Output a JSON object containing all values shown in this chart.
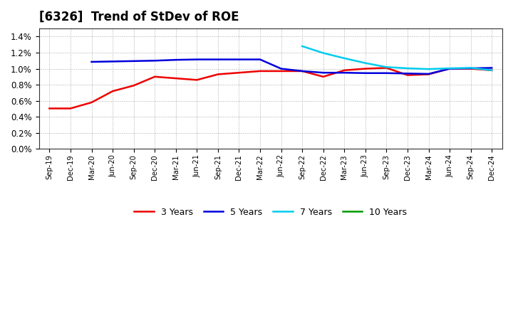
{
  "title": "[6326]  Trend of StDev of ROE",
  "background_color": "#ffffff",
  "plot_bg_color": "#ffffff",
  "grid_color": "#aaaaaa",
  "ylim": [
    0.0,
    0.015
  ],
  "yticks": [
    0.0,
    0.002,
    0.004,
    0.006,
    0.008,
    0.01,
    0.012,
    0.014
  ],
  "x_labels": [
    "Sep-19",
    "Dec-19",
    "Mar-20",
    "Jun-20",
    "Sep-20",
    "Dec-20",
    "Mar-21",
    "Jun-21",
    "Sep-21",
    "Dec-21",
    "Mar-22",
    "Jun-22",
    "Sep-22",
    "Dec-22",
    "Mar-23",
    "Jun-23",
    "Sep-23",
    "Dec-23",
    "Mar-24",
    "Jun-24",
    "Sep-24",
    "Dec-24"
  ],
  "series": {
    "3 Years": {
      "color": "#ee0000",
      "linewidth": 1.8,
      "values": [
        0.00505,
        0.00505,
        0.0058,
        0.0072,
        0.0079,
        0.009,
        0.0088,
        0.0086,
        0.0093,
        0.0095,
        0.0097,
        0.0097,
        0.0097,
        0.009,
        0.0098,
        0.01,
        0.0101,
        0.0092,
        0.0093,
        0.01,
        0.01,
        0.0098
      ]
    },
    "5 Years": {
      "color": "#0000dd",
      "linewidth": 1.8,
      "values": [
        null,
        null,
        0.01085,
        0.0109,
        0.01095,
        0.011,
        0.0111,
        0.01115,
        0.01115,
        0.01115,
        0.01115,
        0.01,
        0.0097,
        0.0095,
        0.0095,
        0.00945,
        0.00945,
        0.0094,
        0.00935,
        0.01,
        0.01005,
        0.0101
      ]
    },
    "7 Years": {
      "color": "#00ccee",
      "linewidth": 1.8,
      "values": [
        null,
        null,
        null,
        null,
        null,
        null,
        null,
        null,
        null,
        null,
        null,
        null,
        0.0128,
        0.01195,
        0.0113,
        0.0107,
        0.0102,
        0.01005,
        0.00995,
        0.01005,
        0.0101,
        0.0098
      ]
    },
    "10 Years": {
      "color": "#009900",
      "linewidth": 1.8,
      "values": [
        null,
        null,
        null,
        null,
        null,
        null,
        null,
        null,
        null,
        null,
        null,
        null,
        null,
        null,
        null,
        null,
        null,
        null,
        null,
        null,
        null,
        null
      ]
    }
  },
  "legend": {
    "entries": [
      "3 Years",
      "5 Years",
      "7 Years",
      "10 Years"
    ],
    "colors": [
      "#ee0000",
      "#0000dd",
      "#00ccee",
      "#009900"
    ]
  }
}
